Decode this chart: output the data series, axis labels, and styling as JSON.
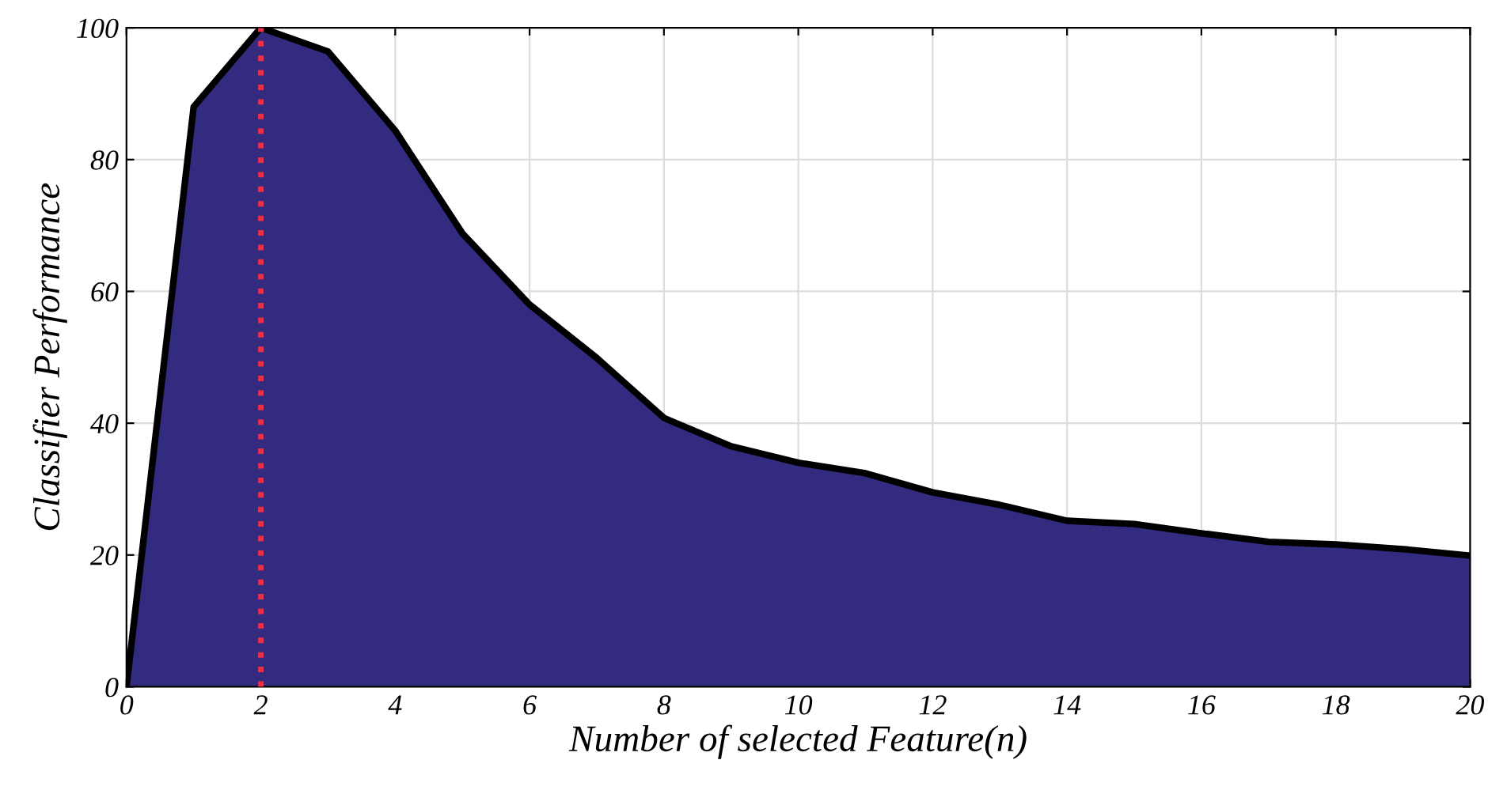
{
  "chart_data": {
    "type": "area",
    "xlabel": "Number of selected Feature(n)",
    "ylabel": "Classifier Performance",
    "x": [
      0,
      1,
      2,
      3,
      4,
      5,
      6,
      7,
      8,
      9,
      10,
      11,
      12,
      13,
      14,
      15,
      16,
      17,
      18,
      19,
      20
    ],
    "series": [
      {
        "color": "#332b80",
        "values": [
          0,
          88,
          100,
          96.4,
          84.4,
          68.8,
          58,
          49.9,
          40.8,
          36.5,
          34,
          32.4,
          29.5,
          27.6,
          25.2,
          24.7,
          23.3,
          22,
          21.6,
          20.9,
          19.9
        ]
      }
    ],
    "xlim": [
      0,
      20
    ],
    "ylim": [
      0,
      100
    ],
    "xticks": [
      0,
      2,
      4,
      6,
      8,
      10,
      12,
      14,
      16,
      18,
      20
    ],
    "yticks": [
      0,
      20,
      40,
      60,
      80,
      100
    ],
    "grid": true,
    "ref_lines": [
      {
        "axis": "x",
        "value": 2,
        "color": "#e8304a",
        "line_style": "dotted"
      }
    ]
  }
}
